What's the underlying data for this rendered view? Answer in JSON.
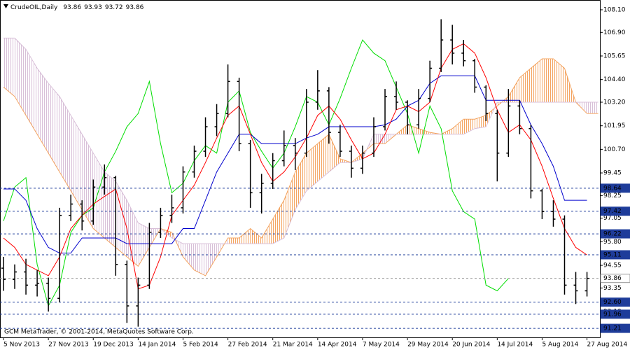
{
  "chart_data": {
    "type": "ohlc",
    "symbol": "CrudeOIL,Daily",
    "last_ohlc": [
      93.86,
      93.93,
      93.72,
      93.86
    ],
    "copyright": "GCM MetaTrader, © 2001-2014, MetaQuotes Software Corp.",
    "x": [
      "5 Nov 2013",
      null,
      null,
      null,
      "27 Nov 2013",
      null,
      null,
      null,
      "19 Dec 2013",
      null,
      null,
      null,
      "14 Jan 2014",
      null,
      null,
      null,
      "5 Feb 2014",
      null,
      null,
      null,
      "27 Feb 2014",
      null,
      null,
      null,
      "21 Mar 2014",
      null,
      null,
      null,
      "14 Apr 2014",
      null,
      null,
      null,
      "7 May 2014",
      null,
      null,
      null,
      "29 May 2014",
      null,
      null,
      null,
      "20 Jun 2014",
      null,
      null,
      null,
      "14 Jul 2014",
      null,
      null,
      null,
      "5 Aug 2014",
      null,
      null,
      null,
      "27 Aug 2014",
      null
    ],
    "open": [
      94.4,
      93.8,
      94.2,
      93.5,
      93.6,
      92.8,
      97.2,
      97.8,
      96.9,
      98.7,
      99.2,
      94.6,
      92.4,
      93.5,
      96.3,
      97.2,
      97.6,
      99.5,
      100.6,
      101.9,
      102.6,
      104.3,
      101.0,
      98.4,
      98.9,
      100.1,
      100.9,
      100.5,
      103.2,
      103.8,
      101.6,
      100.6,
      99.7,
      100.5,
      101.9,
      103.5,
      103.2,
      102.0,
      103.4,
      105.0,
      106.5,
      105.8,
      105.4,
      104.0,
      102.6,
      100.5,
      103.0,
      101.8,
      98.5,
      97.4,
      97.0,
      93.5,
      93.2,
      null
    ],
    "high": [
      95.0,
      94.6,
      94.9,
      94.3,
      93.9,
      97.6,
      98.3,
      98.0,
      99.1,
      99.9,
      99.3,
      94.8,
      93.9,
      96.8,
      97.6,
      98.3,
      99.8,
      100.9,
      102.4,
      103.1,
      105.2,
      104.5,
      101.2,
      99.4,
      100.5,
      101.7,
      101.3,
      103.9,
      104.9,
      104.0,
      102.0,
      100.9,
      100.9,
      102.4,
      103.9,
      104.3,
      103.3,
      103.9,
      105.4,
      107.6,
      107.3,
      106.5,
      105.5,
      104.1,
      102.8,
      103.9,
      103.3,
      102.0,
      98.6,
      98.0,
      97.2,
      94.2,
      94.2,
      null
    ],
    "low": [
      93.2,
      93.3,
      93.0,
      92.9,
      92.1,
      92.6,
      96.9,
      96.4,
      96.7,
      98.3,
      94.0,
      91.5,
      91.3,
      93.3,
      96.0,
      96.8,
      97.3,
      99.2,
      100.3,
      101.4,
      102.4,
      100.6,
      97.6,
      97.3,
      98.6,
      99.8,
      99.6,
      100.3,
      102.8,
      101.0,
      100.3,
      99.2,
      99.4,
      100.3,
      101.7,
      102.8,
      101.5,
      101.8,
      103.2,
      104.8,
      105.2,
      105.1,
      103.7,
      102.2,
      99.0,
      100.3,
      101.5,
      98.1,
      97.0,
      96.6,
      93.0,
      92.5,
      92.9,
      null
    ],
    "close": [
      93.8,
      94.2,
      93.5,
      93.6,
      92.8,
      97.2,
      97.8,
      96.9,
      98.7,
      99.2,
      94.6,
      92.4,
      93.5,
      96.3,
      97.2,
      97.6,
      99.5,
      100.6,
      101.9,
      102.6,
      104.3,
      101.0,
      98.4,
      98.9,
      100.1,
      100.9,
      100.5,
      103.2,
      103.8,
      101.6,
      100.6,
      99.7,
      100.5,
      101.9,
      103.5,
      103.2,
      102.0,
      103.4,
      105.0,
      106.5,
      105.8,
      105.4,
      104.0,
      102.6,
      100.5,
      103.0,
      101.8,
      98.5,
      97.4,
      97.0,
      93.5,
      93.2,
      93.86,
      null
    ],
    "bar_color": "#000000",
    "senkou_a": {
      "color": "#f4a460",
      "values": [
        104.0,
        103.5,
        102.5,
        101.5,
        100.5,
        99.5,
        98.5,
        97.5,
        96.5,
        96.0,
        95.5,
        95.0,
        94.5,
        95.5,
        96.5,
        96.3,
        95.0,
        94.3,
        94.0,
        95.0,
        96.0,
        96.0,
        96.5,
        96.0,
        97.0,
        98.0,
        99.5,
        100.5,
        101.0,
        101.5,
        100.2,
        100.0,
        100.5,
        101.0,
        101.0,
        101.5,
        102.0,
        101.8,
        101.6,
        101.5,
        101.8,
        102.3,
        102.3,
        102.5,
        103.0,
        103.5,
        104.5,
        105.0,
        105.5,
        105.5,
        105.0,
        103.2,
        102.6,
        102.6
      ]
    },
    "senkou_b": {
      "color": "#d8bfd8",
      "values": [
        106.6,
        106.6,
        106.0,
        105.0,
        104.2,
        103.5,
        102.5,
        101.5,
        100.5,
        99.5,
        99.0,
        98.0,
        96.8,
        96.5,
        96.5,
        96.0,
        95.7,
        95.7,
        95.7,
        95.7,
        95.7,
        95.7,
        95.7,
        95.7,
        95.7,
        96.0,
        97.5,
        98.5,
        99.0,
        99.5,
        100.0,
        100.0,
        100.2,
        101.5,
        101.5,
        101.5,
        101.5,
        101.5,
        101.5,
        101.5,
        101.5,
        101.5,
        101.8,
        101.9,
        103.2,
        103.2,
        103.2,
        103.2,
        103.2,
        103.2,
        103.2,
        103.2,
        103.2,
        103.2
      ]
    },
    "tenkan": {
      "color": "#ff0000",
      "values": [
        96.0,
        95.5,
        94.6,
        94.3,
        94.0,
        95.0,
        96.5,
        97.2,
        97.8,
        98.2,
        98.6,
        96.5,
        93.3,
        93.5,
        95.0,
        97.2,
        98.0,
        98.8,
        100.0,
        101.3,
        102.5,
        103.0,
        101.5,
        100.0,
        99.0,
        99.5,
        100.3,
        101.3,
        102.5,
        103.0,
        102.3,
        101.2,
        100.2,
        100.5,
        101.5,
        102.8,
        103.0,
        102.7,
        103.2,
        105.0,
        106.0,
        106.3,
        105.8,
        104.5,
        102.8,
        101.6,
        102.0,
        101.2,
        99.8,
        98.1,
        96.5,
        95.5,
        95.1,
        null
      ]
    },
    "kijun": {
      "color": "#0000cd",
      "values": [
        98.6,
        98.6,
        98.0,
        96.5,
        95.5,
        95.2,
        95.2,
        96.0,
        96.0,
        96.0,
        96.0,
        95.7,
        95.7,
        95.7,
        95.7,
        95.7,
        96.5,
        96.5,
        98.0,
        99.5,
        100.5,
        101.5,
        101.5,
        101.0,
        101.0,
        101.0,
        101.0,
        101.3,
        101.5,
        101.9,
        101.9,
        101.9,
        101.9,
        101.9,
        102.0,
        102.3,
        103.0,
        103.3,
        104.2,
        104.6,
        104.6,
        104.6,
        104.6,
        103.3,
        103.3,
        103.3,
        103.3,
        102.0,
        101.0,
        99.8,
        98.0,
        98.0,
        98.0,
        null
      ]
    },
    "chikou": {
      "color": "#00dd00",
      "values": [
        96.9,
        98.7,
        99.2,
        94.6,
        92.4,
        93.5,
        96.3,
        97.2,
        97.6,
        99.5,
        100.6,
        101.9,
        102.6,
        104.3,
        101.0,
        98.4,
        98.9,
        100.1,
        100.9,
        100.5,
        103.2,
        103.8,
        101.6,
        100.6,
        99.7,
        100.5,
        101.9,
        103.5,
        103.2,
        102.0,
        103.4,
        105.0,
        106.5,
        105.8,
        105.4,
        104.0,
        102.6,
        100.5,
        103.0,
        101.8,
        98.5,
        97.4,
        97.0,
        93.5,
        93.2,
        93.86,
        null,
        null,
        null,
        null,
        null,
        null,
        null,
        null
      ]
    },
    "ylim": [
      90.73,
      108.47
    ],
    "yticks": [
      {
        "value": 108.1,
        "label": "108.10"
      },
      {
        "value": 106.9,
        "label": "106.90"
      },
      105.65,
      {
        "value": 104.4,
        "label": "104.40"
      },
      {
        "value": 103.2,
        "label": "103.20"
      },
      101.95,
      {
        "value": 100.7,
        "label": "100.70"
      },
      99.45,
      98.25,
      97.05,
      {
        "value": 95.8,
        "label": "95.80"
      },
      94.55,
      93.35,
      {
        "value": 92.1,
        "label": "92.10"
      }
    ],
    "levels": [
      98.64,
      97.42,
      96.22,
      95.11,
      {
        "value": 92.6,
        "label": "92.60"
      },
      91.96,
      91.21
    ],
    "level_color": "#1e3c9a",
    "current_price": 93.86
  }
}
